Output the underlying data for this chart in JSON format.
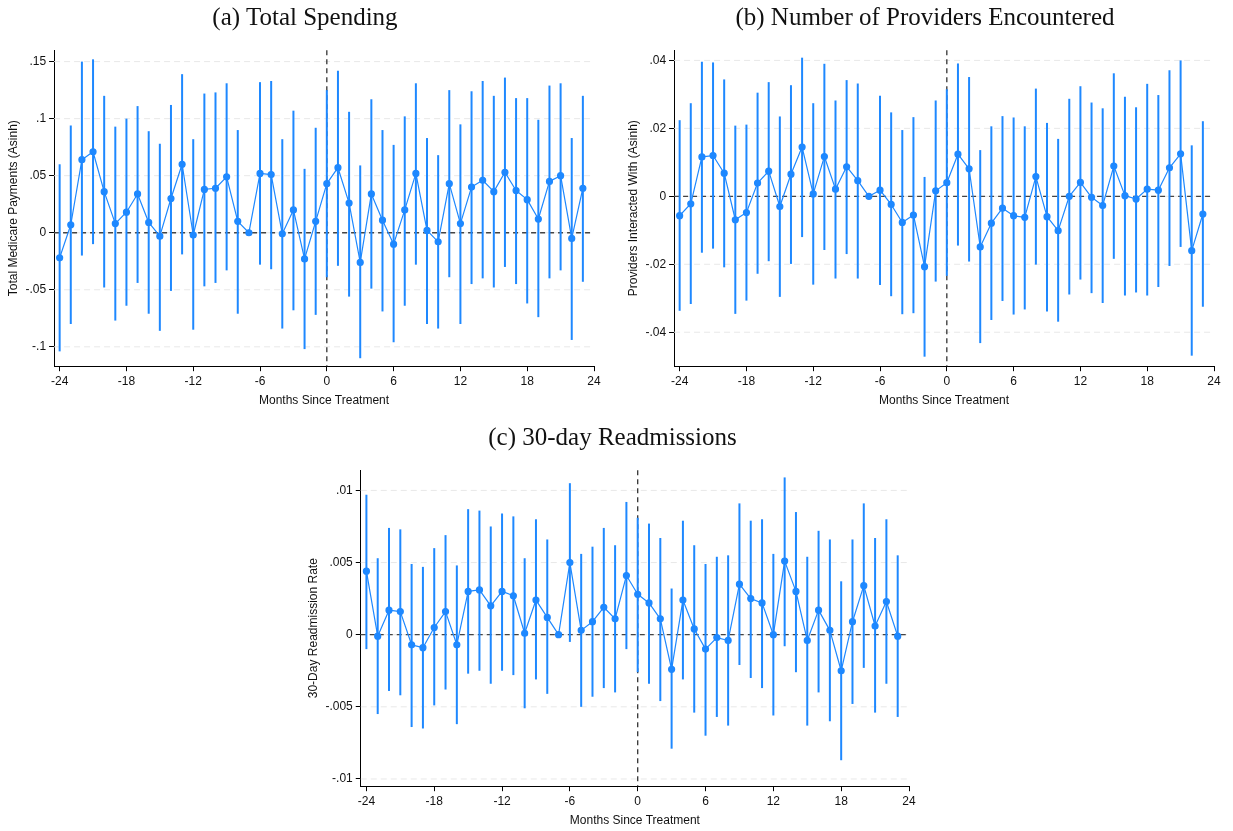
{
  "chart_data": [
    {
      "type": "line",
      "title": "(a) Total Spending",
      "xlabel": "Months Since Treatment",
      "ylabel": "Total Medicare Payments (Asinh)",
      "marker": "circle",
      "grid": "y",
      "x": [
        -24,
        -23,
        -22,
        -21,
        -20,
        -19,
        -18,
        -17,
        -16,
        -15,
        -14,
        -13,
        -12,
        -11,
        -10,
        -9,
        -8,
        -7,
        -6,
        -5,
        -4,
        -3,
        -2,
        -1,
        0,
        1,
        2,
        3,
        4,
        5,
        6,
        7,
        8,
        9,
        10,
        11,
        12,
        13,
        14,
        15,
        16,
        17,
        18,
        19,
        20,
        21,
        22,
        23
      ],
      "xlim": [
        -24.5,
        24
      ],
      "xticks": [
        -24,
        -18,
        -12,
        -6,
        0,
        6,
        12,
        18,
        24
      ],
      "ylim": [
        -0.117,
        0.16
      ],
      "yticks": [
        {
          "value": -0.1,
          "label": "-.1"
        },
        {
          "value": -0.05,
          "label": "-.05"
        },
        {
          "value": 0,
          "label": "0"
        },
        {
          "value": 0.05,
          "label": ".05"
        },
        {
          "value": 0.1,
          "label": ".1"
        },
        {
          "value": 0.15,
          "label": ".15"
        }
      ],
      "ref_lines": [
        {
          "axis": "y",
          "value": 0,
          "color": "#444444",
          "line_style": "dashed"
        },
        {
          "axis": "x",
          "value": 0,
          "color": "#333333",
          "line_style": "dashed"
        }
      ],
      "series": [
        {
          "color": "#1e88ff",
          "values": [
            -0.022,
            0.007,
            0.064,
            0.071,
            0.036,
            0.008,
            0.018,
            0.034,
            0.009,
            -0.003,
            0.03,
            0.06,
            -0.002,
            0.038,
            0.039,
            0.049,
            0.01,
            0,
            0.052,
            0.051,
            -0.001,
            0.02,
            -0.023,
            0.01,
            0.043,
            0.057,
            0.026,
            -0.026,
            0.034,
            0.011,
            -0.01,
            0.02,
            0.052,
            0.002,
            -0.008,
            0.043,
            0.008,
            0.04,
            0.046,
            0.036,
            0.053,
            0.037,
            0.029,
            0.012,
            0.045,
            0.05,
            -0.005,
            0.039
          ],
          "errors": [
            [
              -0.104,
              0.06
            ],
            [
              -0.08,
              0.094
            ],
            [
              -0.02,
              0.15
            ],
            [
              -0.01,
              0.152
            ],
            [
              -0.048,
              0.12
            ],
            [
              -0.077,
              0.093
            ],
            [
              -0.064,
              0.1
            ],
            [
              -0.044,
              0.111
            ],
            [
              -0.071,
              0.089
            ],
            [
              -0.086,
              0.078
            ],
            [
              -0.051,
              0.112
            ],
            [
              -0.019,
              0.139
            ],
            [
              -0.085,
              0.082
            ],
            [
              -0.047,
              0.122
            ],
            [
              -0.044,
              0.123
            ],
            [
              -0.033,
              0.131
            ],
            [
              -0.071,
              0.09
            ],
            null,
            [
              -0.028,
              0.132
            ],
            [
              -0.032,
              0.133
            ],
            [
              -0.084,
              0.082
            ],
            [
              -0.068,
              0.107
            ],
            [
              -0.102,
              0.056
            ],
            [
              -0.072,
              0.092
            ],
            [
              -0.039,
              0.125
            ],
            [
              -0.029,
              0.142
            ],
            [
              -0.056,
              0.106
            ],
            [
              -0.11,
              0.059
            ],
            [
              -0.049,
              0.117
            ],
            [
              -0.069,
              0.09
            ],
            [
              -0.096,
              0.077
            ],
            [
              -0.064,
              0.102
            ],
            [
              -0.028,
              0.131
            ],
            [
              -0.08,
              0.083
            ],
            [
              -0.084,
              0.068
            ],
            [
              -0.039,
              0.125
            ],
            [
              -0.08,
              0.095
            ],
            [
              -0.045,
              0.124
            ],
            [
              -0.04,
              0.133
            ],
            [
              -0.048,
              0.12
            ],
            [
              -0.03,
              0.136
            ],
            [
              -0.045,
              0.118
            ],
            [
              -0.062,
              0.118
            ],
            [
              -0.074,
              0.099
            ],
            [
              -0.04,
              0.129
            ],
            [
              -0.033,
              0.131
            ],
            [
              -0.094,
              0.083
            ],
            [
              -0.043,
              0.12
            ]
          ]
        }
      ]
    },
    {
      "type": "line",
      "title": "(b) Number of Providers Encountered",
      "xlabel": "Months Since Treatment",
      "ylabel": "Providers Interacted With (Asinh)",
      "marker": "circle",
      "grid": "y",
      "x": [
        -24,
        -23,
        -22,
        -21,
        -20,
        -19,
        -18,
        -17,
        -16,
        -15,
        -14,
        -13,
        -12,
        -11,
        -10,
        -9,
        -8,
        -7,
        -6,
        -5,
        -4,
        -3,
        -2,
        -1,
        0,
        1,
        2,
        3,
        4,
        5,
        6,
        7,
        8,
        9,
        10,
        11,
        12,
        13,
        14,
        15,
        16,
        17,
        18,
        19,
        20,
        21,
        22,
        23
      ],
      "xlim": [
        -24.5,
        24
      ],
      "xticks": [
        -24,
        -18,
        -12,
        -6,
        0,
        6,
        12,
        18,
        24
      ],
      "ylim": [
        -0.05,
        0.043
      ],
      "yticks": [
        {
          "value": -0.04,
          "label": "-.04"
        },
        {
          "value": -0.02,
          "label": "-.02"
        },
        {
          "value": 0,
          "label": "0"
        },
        {
          "value": 0.02,
          "label": ".02"
        },
        {
          "value": 0.04,
          "label": ".04"
        }
      ],
      "ref_lines": [
        {
          "axis": "y",
          "value": 0,
          "color": "#444444",
          "line_style": "dashed"
        },
        {
          "axis": "x",
          "value": 0,
          "color": "#333333",
          "line_style": "dashed"
        }
      ],
      "series": [
        {
          "color": "#1e88ff",
          "values": [
            -0.0057,
            -0.0022,
            0.0116,
            0.012,
            0.0068,
            -0.0069,
            -0.0048,
            0.0039,
            0.0074,
            -0.003,
            0.0065,
            0.0145,
            0.0007,
            0.0117,
            0.0021,
            0.0087,
            0.0046,
            0,
            0.0018,
            -0.0024,
            -0.0077,
            -0.0055,
            -0.0207,
            0.0016,
            0.004,
            0.0124,
            0.0081,
            -0.0149,
            -0.0079,
            -0.0035,
            -0.0057,
            -0.0062,
            0.0058,
            -0.006,
            -0.0101,
            0,
            0.0041,
            -0.0003,
            -0.0027,
            0.0089,
            0.0002,
            -0.0008,
            0.0021,
            0.0018,
            0.0084,
            0.0125,
            -0.016,
            -0.0052
          ],
          "errors": [
            [
              -0.0337,
              0.0224
            ],
            [
              -0.0317,
              0.0274
            ],
            [
              -0.0166,
              0.0396
            ],
            [
              -0.0154,
              0.0394
            ],
            [
              -0.0209,
              0.0344
            ],
            [
              -0.0346,
              0.0208
            ],
            [
              -0.0307,
              0.0211
            ],
            [
              -0.0228,
              0.0305
            ],
            [
              -0.0191,
              0.0336
            ],
            [
              -0.0296,
              0.0235
            ],
            [
              -0.0199,
              0.0327
            ],
            [
              -0.012,
              0.0408
            ],
            [
              -0.026,
              0.0274
            ],
            [
              -0.0158,
              0.039
            ],
            [
              -0.0242,
              0.0282
            ],
            [
              -0.017,
              0.0342
            ],
            [
              -0.0242,
              0.0332
            ],
            null,
            [
              -0.0261,
              0.0296
            ],
            [
              -0.0294,
              0.0247
            ],
            [
              -0.0347,
              0.0195
            ],
            [
              -0.0344,
              0.0233
            ],
            [
              -0.0472,
              0.0057
            ],
            [
              -0.0251,
              0.0282
            ],
            [
              -0.0234,
              0.0315
            ],
            [
              -0.0145,
              0.0391
            ],
            [
              -0.0192,
              0.0351
            ],
            [
              -0.0432,
              0.0136
            ],
            [
              -0.0364,
              0.0206
            ],
            [
              -0.0308,
              0.0236
            ],
            [
              -0.0348,
              0.0232
            ],
            [
              -0.0333,
              0.0206
            ],
            [
              -0.0201,
              0.0317
            ],
            [
              -0.0339,
              0.0216
            ],
            [
              -0.0369,
              0.0169
            ],
            [
              -0.0289,
              0.0287
            ],
            [
              -0.0245,
              0.0324
            ],
            [
              -0.0285,
              0.0276
            ],
            [
              -0.0314,
              0.0259
            ],
            [
              -0.0184,
              0.0362
            ],
            [
              -0.0292,
              0.0293
            ],
            [
              -0.0283,
              0.0262
            ],
            [
              -0.0292,
              0.0331
            ],
            [
              -0.0267,
              0.0298
            ],
            [
              -0.0205,
              0.0371
            ],
            [
              -0.0149,
              0.04
            ],
            [
              -0.0469,
              0.015
            ],
            [
              -0.0325,
              0.0221
            ]
          ]
        }
      ]
    },
    {
      "type": "line",
      "title": "(c) 30-day Readmissions",
      "xlabel": "Months Since Treatment",
      "ylabel": "30-Day Readmission Rate",
      "marker": "circle",
      "grid": "y",
      "x": [
        -24,
        -23,
        -22,
        -21,
        -20,
        -19,
        -18,
        -17,
        -16,
        -15,
        -14,
        -13,
        -12,
        -11,
        -10,
        -9,
        -8,
        -7,
        -6,
        -5,
        -4,
        -3,
        -2,
        -1,
        0,
        1,
        2,
        3,
        4,
        5,
        6,
        7,
        8,
        9,
        10,
        11,
        12,
        13,
        14,
        15,
        16,
        17,
        18,
        19,
        20,
        21,
        22,
        23
      ],
      "xlim": [
        -24.5,
        24
      ],
      "xticks": [
        -24,
        -18,
        -12,
        -6,
        0,
        6,
        12,
        18,
        24
      ],
      "ylim": [
        -0.0105,
        0.0114
      ],
      "yticks": [
        {
          "value": -0.01,
          "label": "-.01"
        },
        {
          "value": -0.005,
          "label": "-.005"
        },
        {
          "value": 0,
          "label": "0"
        },
        {
          "value": 0.005,
          "label": ".005"
        },
        {
          "value": 0.01,
          "label": ".01"
        }
      ],
      "ref_lines": [
        {
          "axis": "y",
          "value": 0,
          "color": "#444444",
          "line_style": "dashed"
        },
        {
          "axis": "x",
          "value": 0,
          "color": "#333333",
          "line_style": "dashed"
        }
      ],
      "series": [
        {
          "color": "#1e88ff",
          "values": [
            0.0044,
            -0.0001,
            0.0017,
            0.0016,
            -0.0007,
            -0.0009,
            0.0005,
            0.0016,
            -0.0007,
            0.003,
            0.0031,
            0.002,
            0.003,
            0.0027,
            0.0001,
            0.0024,
            0.0012,
            0,
            0.005,
            0.0003,
            0.0009,
            0.0019,
            0.0011,
            0.0041,
            0.0028,
            0.0022,
            0.0011,
            -0.0024,
            0.0024,
            0.0004,
            -0.001,
            -0.0002,
            -0.0004,
            0.0035,
            0.0025,
            0.0022,
            0,
            0.0051,
            0.003,
            -0.0004,
            0.0017,
            0.0003,
            -0.0025,
            0.0009,
            0.0034,
            0.0006,
            0.0023,
            -0.0001
          ],
          "errors": [
            [
              -0.001,
              0.0097
            ],
            [
              -0.0055,
              0.0053
            ],
            [
              -0.0039,
              0.0074
            ],
            [
              -0.0042,
              0.0073
            ],
            [
              -0.0064,
              0.0049
            ],
            [
              -0.0065,
              0.0047
            ],
            [
              -0.0049,
              0.006
            ],
            [
              -0.0038,
              0.0069
            ],
            [
              -0.0062,
              0.0048
            ],
            [
              -0.0027,
              0.0087
            ],
            [
              -0.0025,
              0.0086
            ],
            [
              -0.0034,
              0.0075
            ],
            [
              -0.0025,
              0.0084
            ],
            [
              -0.0028,
              0.0082
            ],
            [
              -0.0051,
              0.0053
            ],
            [
              -0.0031,
              0.008
            ],
            [
              -0.0041,
              0.0066
            ],
            null,
            [
              -0.0005,
              0.0105
            ],
            [
              -0.005,
              0.0056
            ],
            [
              -0.0043,
              0.0061
            ],
            [
              -0.0037,
              0.0074
            ],
            [
              -0.004,
              0.0062
            ],
            [
              -0.001,
              0.0092
            ],
            [
              -0.0026,
              0.0081
            ],
            [
              -0.0034,
              0.0077
            ],
            [
              -0.0046,
              0.0067
            ],
            [
              -0.0079,
              0.0032
            ],
            [
              -0.0031,
              0.0079
            ],
            [
              -0.0054,
              0.0062
            ],
            [
              -0.007,
              0.0049
            ],
            [
              -0.0057,
              0.0054
            ],
            [
              -0.0063,
              0.0055
            ],
            [
              -0.0021,
              0.0091
            ],
            [
              -0.003,
              0.0079
            ],
            [
              -0.0037,
              0.008
            ],
            [
              -0.0056,
              0.0056
            ],
            [
              -0.0008,
              0.0109
            ],
            [
              -0.0026,
              0.0085
            ],
            [
              -0.0063,
              0.0054
            ],
            [
              -0.004,
              0.0072
            ],
            [
              -0.006,
              0.0066
            ],
            [
              -0.0087,
              0.0037
            ],
            [
              -0.0048,
              0.0066
            ],
            [
              -0.0023,
              0.0091
            ],
            [
              -0.0054,
              0.0067
            ],
            [
              -0.0034,
              0.008
            ],
            [
              -0.0057,
              0.0055
            ]
          ]
        }
      ]
    }
  ]
}
